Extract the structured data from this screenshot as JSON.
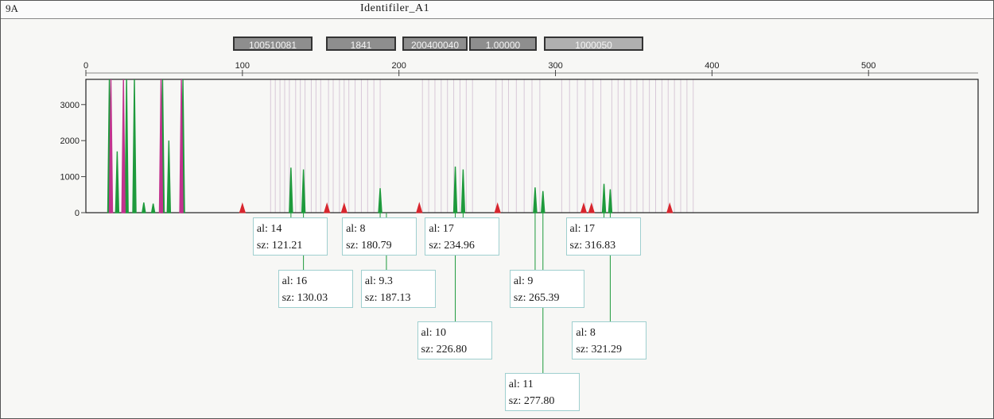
{
  "window": {
    "channel_label": "9A",
    "title": "Identifiler_A1"
  },
  "toolbar": {
    "buttons": [
      "100510081",
      "1841",
      "200400040",
      "1.00000",
      "1000050"
    ]
  },
  "colors": {
    "green": "#1e9a3c",
    "magenta": "#c2338f",
    "red": "#d8262e",
    "bin_line": "#d8c8d8",
    "axis": "#222222",
    "label_border": "#9fcfcf"
  },
  "chart_data": {
    "type": "line",
    "title": "",
    "xlabel": "",
    "ylabel": "",
    "xlim": [
      0,
      570
    ],
    "ylim": [
      0,
      3700
    ],
    "x_ticks": [
      0,
      100,
      200,
      300,
      400,
      500
    ],
    "x_tick_labels": [
      "0",
      "100",
      "200",
      "300",
      "400",
      "500"
    ],
    "y_ticks": [
      0,
      1000,
      2000,
      3000
    ],
    "y_tick_labels": [
      "0",
      "1000",
      "2000",
      "3000"
    ],
    "bin_lines_x": [
      118,
      121,
      124,
      127,
      130,
      134,
      137,
      140,
      144,
      147,
      150,
      155,
      158,
      162,
      165,
      168,
      172,
      176,
      180,
      184,
      188,
      215,
      219,
      223,
      227,
      231,
      235,
      239,
      243,
      247,
      262,
      266,
      270,
      275,
      280,
      285,
      290,
      304,
      309,
      314,
      319,
      324,
      329,
      336,
      340,
      344,
      348,
      352,
      356,
      360,
      364,
      368,
      372,
      376,
      380,
      384,
      388
    ],
    "series": [
      {
        "color": "green",
        "peaks": [
          {
            "x": 15,
            "y": 3700
          },
          {
            "x": 20,
            "y": 1700
          },
          {
            "x": 26,
            "y": 3700
          },
          {
            "x": 31,
            "y": 3700
          },
          {
            "x": 37,
            "y": 280
          },
          {
            "x": 43,
            "y": 250
          },
          {
            "x": 49,
            "y": 3700
          },
          {
            "x": 53,
            "y": 2000
          },
          {
            "x": 62,
            "y": 3700
          },
          {
            "x": 131,
            "y": 1250
          },
          {
            "x": 139,
            "y": 1200
          },
          {
            "x": 188,
            "y": 680
          },
          {
            "x": 236,
            "y": 1280
          },
          {
            "x": 241,
            "y": 1200
          },
          {
            "x": 287,
            "y": 700
          },
          {
            "x": 292,
            "y": 600
          },
          {
            "x": 331,
            "y": 800
          },
          {
            "x": 335,
            "y": 650
          }
        ]
      },
      {
        "color": "magenta",
        "peaks": [
          {
            "x": 16,
            "y": 3700
          },
          {
            "x": 24,
            "y": 3700
          },
          {
            "x": 48,
            "y": 3700
          },
          {
            "x": 61,
            "y": 3700
          }
        ]
      },
      {
        "color": "red",
        "peaks": [
          {
            "x": 100,
            "y": 250
          },
          {
            "x": 154,
            "y": 250
          },
          {
            "x": 165,
            "y": 250
          },
          {
            "x": 213,
            "y": 260
          },
          {
            "x": 263,
            "y": 250
          },
          {
            "x": 318,
            "y": 250
          },
          {
            "x": 323,
            "y": 250
          },
          {
            "x": 373,
            "y": 250
          }
        ]
      }
    ],
    "allele_labels": [
      {
        "al": "al: 14",
        "sz": "sz: 121.21",
        "x": 131,
        "row": 1
      },
      {
        "al": "al: 16",
        "sz": "sz: 130.03",
        "x": 139,
        "row": 2
      },
      {
        "al": "al: 8",
        "sz": "sz: 180.79",
        "x": 188,
        "row": 1
      },
      {
        "al": "al: 9.3",
        "sz": "sz: 187.13",
        "x": 192,
        "row": 2
      },
      {
        "al": "al: 17",
        "sz": "sz: 234.96",
        "x": 241,
        "row": 1
      },
      {
        "al": "al: 10",
        "sz": "sz: 226.80",
        "x": 236,
        "row": 3
      },
      {
        "al": "al: 9",
        "sz": "sz: 265.39",
        "x": 287,
        "row": 2
      },
      {
        "al": "al: 11",
        "sz": "sz: 277.80",
        "x": 292,
        "row": 4
      },
      {
        "al": "al: 17",
        "sz": "sz: 316.83",
        "x": 331,
        "row": 1
      },
      {
        "al": "al: 8",
        "sz": "sz: 321.29",
        "x": 335,
        "row": 3
      }
    ]
  }
}
